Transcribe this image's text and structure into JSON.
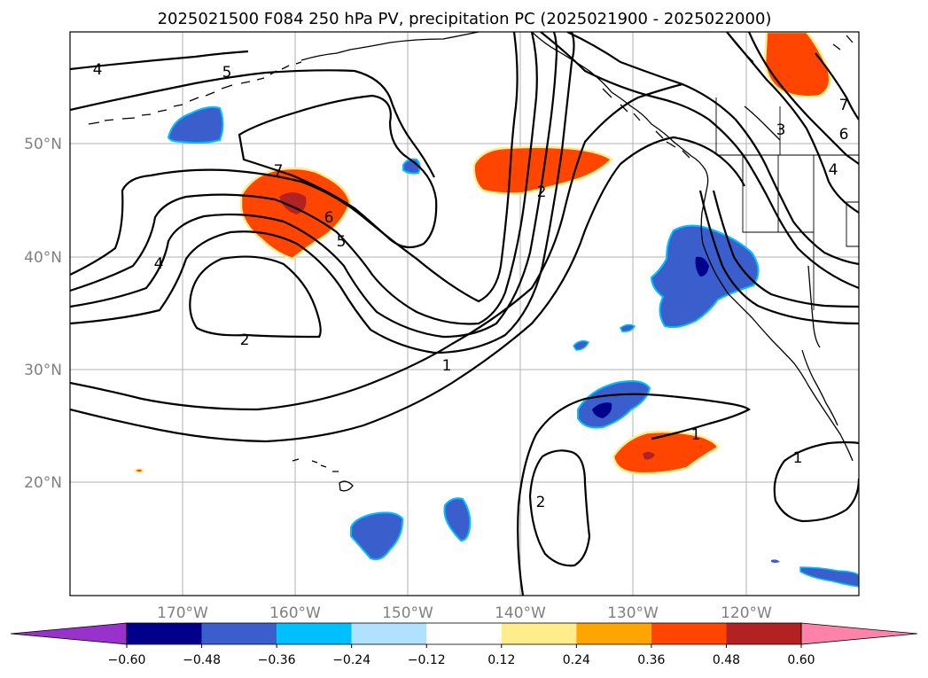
{
  "title": "2025021500 F084 250 hPa PV, precipitation PC (2025021900 - 2025022000)",
  "lon_ticks": [
    "170°W",
    "160°W",
    "150°W",
    "140°W",
    "130°W",
    "120°W"
  ],
  "lat_ticks": [
    "50°N",
    "40°N",
    "30°N",
    "20°N"
  ],
  "colorbar": {
    "ticks": [
      "−0.60",
      "−0.48",
      "−0.36",
      "−0.24",
      "−0.12",
      "0.12",
      "0.24",
      "0.36",
      "0.48",
      "0.60"
    ],
    "colors": [
      "#9932cc",
      "#00008b",
      "#3a5fcd",
      "#00bfff",
      "#b0e2ff",
      "#ffffff",
      "#ffec8b",
      "#ffa500",
      "#ff4500",
      "#b22222",
      "#ff82ab"
    ]
  },
  "pv_contour_labels": [
    "4",
    "5",
    "7",
    "6",
    "5",
    "4",
    "2",
    "2",
    "1",
    "3",
    "7",
    "6",
    "4",
    "1",
    "2",
    "1"
  ],
  "chart_data": {
    "type": "map",
    "map_extent_lon": [
      -180,
      -110
    ],
    "map_extent_lat": [
      10,
      60
    ],
    "fields": [
      "250 hPa PV (contours)",
      "precipitation PC (shaded)"
    ],
    "colorbar_levels": [
      -0.6,
      -0.48,
      -0.36,
      -0.24,
      -0.12,
      0.12,
      0.24,
      0.36,
      0.48,
      0.6
    ],
    "colorbar_extend": "both"
  }
}
